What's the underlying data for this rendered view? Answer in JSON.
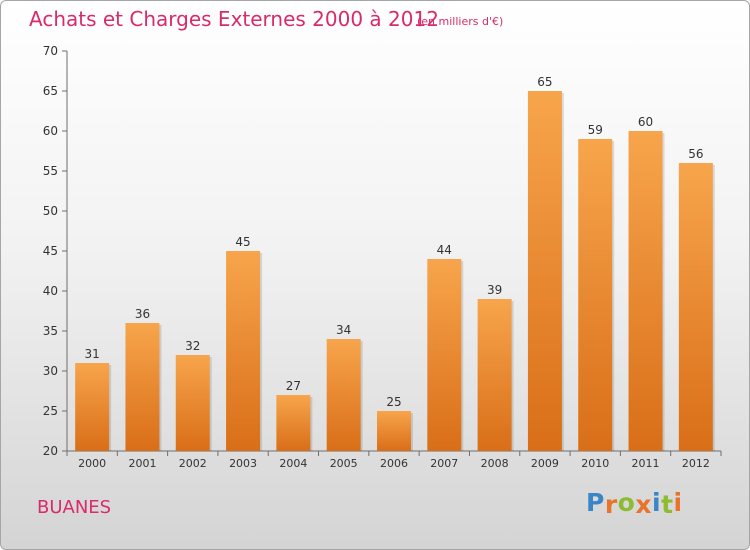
{
  "chart_data": {
    "type": "bar",
    "title": "Achats et Charges Externes 2000 à 2012",
    "subtitle": "(en milliers d'€)",
    "categories": [
      "2000",
      "2001",
      "2002",
      "2003",
      "2004",
      "2005",
      "2006",
      "2007",
      "2008",
      "2009",
      "2010",
      "2011",
      "2012"
    ],
    "values": [
      31,
      36,
      32,
      45,
      27,
      34,
      25,
      44,
      39,
      65,
      59,
      60,
      56
    ],
    "ylim": [
      20,
      70
    ],
    "yticks": [
      20,
      25,
      30,
      35,
      40,
      45,
      50,
      55,
      60,
      65,
      70
    ],
    "grid": false,
    "bar_color_top": "#f7a54c",
    "bar_color_bottom": "#d96e18"
  },
  "footer": {
    "commune": "BUANES",
    "brand_letters": [
      {
        "ch": "P",
        "color": "#3a84c8"
      },
      {
        "ch": "r",
        "color": "#e8732a"
      },
      {
        "ch": "o",
        "color": "#8dbb32"
      },
      {
        "ch": "x",
        "color": "#e8732a"
      },
      {
        "ch": "i",
        "color": "#3a84c8"
      },
      {
        "ch": "t",
        "color": "#8dbb32"
      },
      {
        "ch": "i",
        "color": "#e8732a"
      }
    ]
  },
  "colors": {
    "title": "#d92b6a",
    "axis_text": "#333333"
  }
}
